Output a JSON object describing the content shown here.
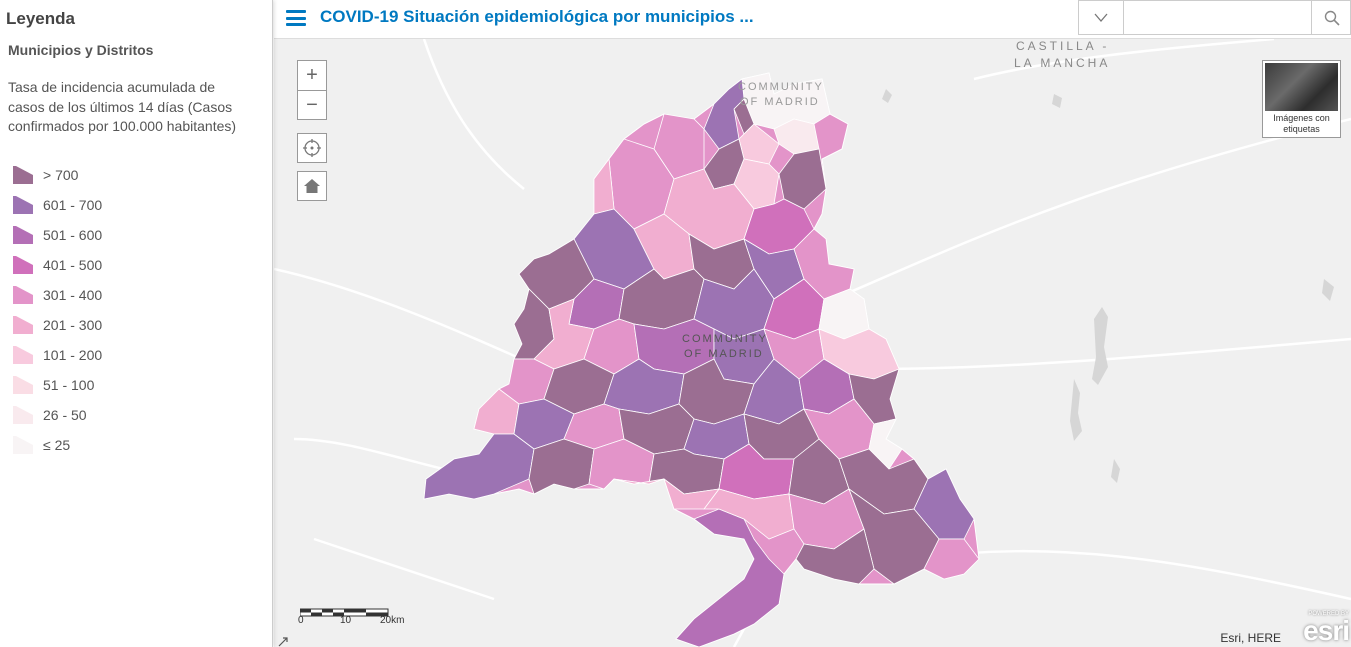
{
  "header": {
    "title": "COVID-19 Situación epidemiológica por municipios ...",
    "search_placeholder": ""
  },
  "legend": {
    "title": "Leyenda",
    "layer_name": "Municipios y Distritos",
    "field_label": "Tasa de incidencia acumulada de casos de los últimos 14 días (Casos confirmados por 100.000 habitantes)",
    "classes": [
      {
        "label": "> 700",
        "color": "#9b6e92"
      },
      {
        "label": "601 - 700",
        "color": "#9c73b3"
      },
      {
        "label": "501 - 600",
        "color": "#b46fb6"
      },
      {
        "label": "401 - 500",
        "color": "#d070bb"
      },
      {
        "label": "301 - 400",
        "color": "#e394c9"
      },
      {
        "label": "201 - 300",
        "color": "#f1aed0"
      },
      {
        "label": "101 - 200",
        "color": "#f8cade"
      },
      {
        "label": "51 - 100",
        "color": "#fadde5"
      },
      {
        "label": "26 - 50",
        "color": "#f9eaee"
      },
      {
        "label": "≤ 25",
        "color": "#f8f4f5"
      }
    ]
  },
  "map": {
    "labels": {
      "castilla_line1": "CASTILLA -",
      "castilla_line2": "LA MANCHA",
      "community_north_line1": "COMMUNITY",
      "community_north_line2": "OF MADRID",
      "community_center_line1": "COMMUNITY",
      "community_center_line2": "OF MADRID"
    },
    "basemap_toggle_label": "Imágenes con etiquetas",
    "zoom_in_label": "+",
    "zoom_out_label": "−",
    "scale": {
      "ticks": [
        "0",
        "10",
        "20km"
      ]
    },
    "attribution": "Esri, HERE",
    "esri_powered": "POWERED BY",
    "esri_name": "esri"
  },
  "colors": {
    "accent": "#0079c1",
    "map_background": "#f0f0f0",
    "water": "#d6d6d6"
  },
  "icons": {
    "menu": "hamburger-icon",
    "search_dropdown": "caret-down-icon",
    "search": "search-icon",
    "locate": "locate-icon",
    "home": "home-icon"
  }
}
